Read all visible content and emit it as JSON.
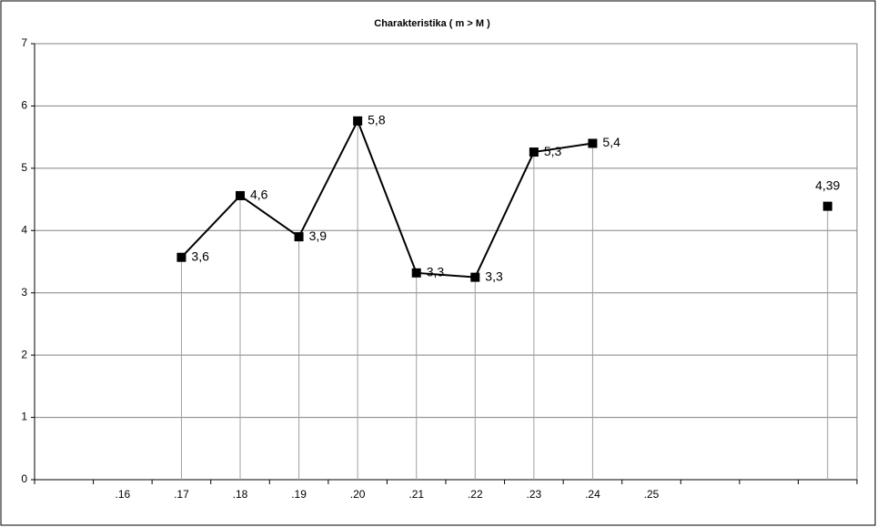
{
  "chart_data": {
    "type": "line",
    "title": "Charakteristika  ( m > M )",
    "categories": [
      null,
      ".16",
      ".17",
      ".18",
      ".19",
      ".20",
      ".21",
      ".22",
      ".23",
      ".24",
      ".25",
      null,
      null,
      null
    ],
    "series": [
      {
        "color": "#000000",
        "values": [
          null,
          null,
          3.57,
          4.56,
          3.9,
          5.76,
          3.32,
          3.25,
          5.26,
          5.4,
          null,
          null,
          null,
          4.39
        ],
        "value_labels": [
          null,
          null,
          "3,6",
          "4,6",
          "3,9",
          "5,8",
          "3,3",
          "3,3",
          "5,3",
          "5,4",
          null,
          null,
          null,
          "4,39"
        ]
      }
    ],
    "ylim": [
      0,
      7
    ],
    "yticks": [
      0,
      1,
      2,
      3,
      4,
      5,
      6,
      7
    ],
    "grid": true,
    "drop_lines": true
  }
}
